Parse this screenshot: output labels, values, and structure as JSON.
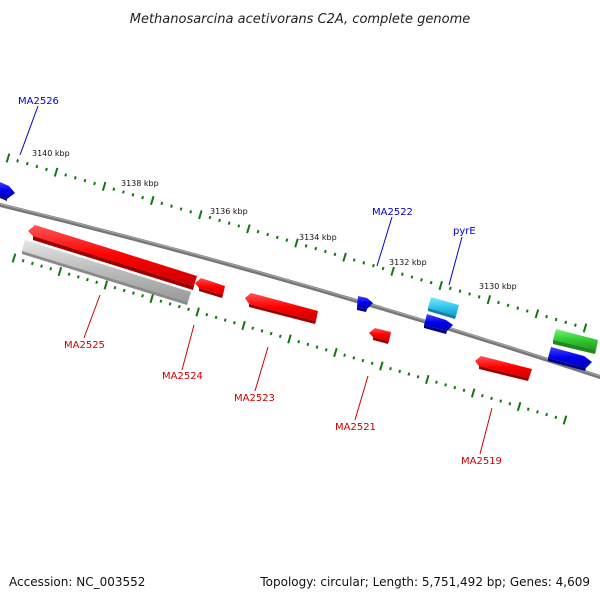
{
  "title": "Methanosarcina acetivorans C2A, complete genome",
  "footer": {
    "accession": "Accession: NC_003552",
    "summary": "Topology: circular; Length: 5,751,492 bp; Genes: 4,609"
  },
  "ruler_labels": [
    "3140 kbp",
    "3138 kbp",
    "3136 kbp",
    "3134 kbp",
    "3132 kbp",
    "3130 kbp"
  ],
  "genes": [
    {
      "id": "MA2526",
      "label": "MA2526",
      "strand": "forward",
      "color": "#0000cc"
    },
    {
      "id": "MA2525",
      "label": "MA2525",
      "strand": "reverse",
      "color": "#cc0000"
    },
    {
      "id": "MA2524",
      "label": "MA2524",
      "strand": "reverse",
      "color": "#cc0000"
    },
    {
      "id": "MA2523",
      "label": "MA2523",
      "strand": "reverse",
      "color": "#cc0000"
    },
    {
      "id": "MA2522",
      "label": "MA2522",
      "strand": "forward",
      "color": "#0000cc"
    },
    {
      "id": "MA2521",
      "label": "MA2521",
      "strand": "reverse",
      "color": "#cc0000"
    },
    {
      "id": "pyrE",
      "label": "pyrE",
      "strand": "forward",
      "color": "#0000cc"
    },
    {
      "id": "MA2519",
      "label": "MA2519",
      "strand": "reverse",
      "color": "#cc0000"
    }
  ],
  "feature_colors": {
    "forward_cds": "#0000ee",
    "reverse_cds": "#ff0000",
    "rna": "#33c8ee",
    "pseudo": "#bbbbbb",
    "other": "#33cc33",
    "backbone": "#777777",
    "ticks": "#117711"
  }
}
